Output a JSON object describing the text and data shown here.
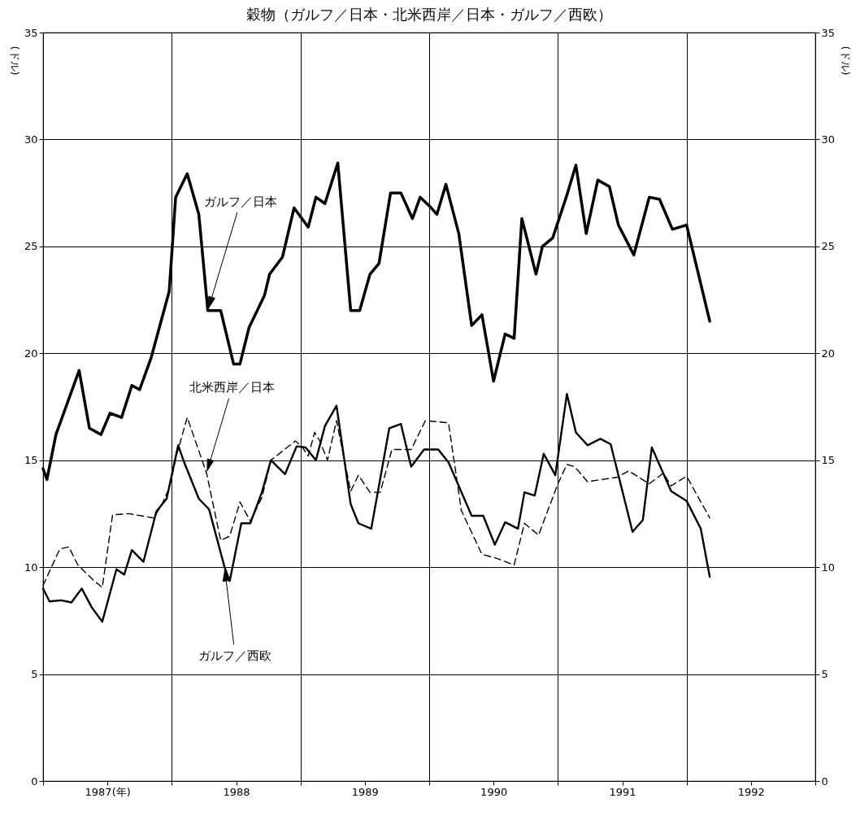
{
  "chart_data": {
    "type": "line",
    "title": "穀物（ガルフ／日本・北米西岸／日本・ガルフ／西欧）",
    "ylabel": "(ドル)",
    "y2label": "(ドル)",
    "xlim": [
      1987,
      1993
    ],
    "xticks": [
      {
        "value": 1987,
        "label": null
      },
      {
        "value": 1987.5,
        "label": "1987(年)"
      },
      {
        "value": 1988,
        "label": null
      },
      {
        "value": 1988.5,
        "label": "1988"
      },
      {
        "value": 1989,
        "label": null
      },
      {
        "value": 1989.5,
        "label": "1989"
      },
      {
        "value": 1990,
        "label": null
      },
      {
        "value": 1990.5,
        "label": "1990"
      },
      {
        "value": 1991,
        "label": null
      },
      {
        "value": 1991.5,
        "label": "1991"
      },
      {
        "value": 1992,
        "label": null
      },
      {
        "value": 1992.5,
        "label": "1992"
      },
      {
        "value": 1993,
        "label": null
      }
    ],
    "ylim": [
      0,
      35
    ],
    "yticks": [
      0,
      5,
      10,
      15,
      20,
      25,
      30,
      35
    ],
    "y2lim": [
      0,
      35
    ],
    "y2ticks": [
      0,
      5,
      10,
      15,
      20,
      25,
      30,
      35
    ],
    "grid": true,
    "series": [
      {
        "color": "#000000",
        "line_style": "solid",
        "x": [
          1987.0,
          1987.03,
          1987.1,
          1987.28,
          1987.36,
          1987.45,
          1987.52,
          1987.61,
          1987.69,
          1987.75,
          1987.84,
          1987.98,
          1988.03,
          1988.12,
          1988.21,
          1988.28,
          1988.38,
          1988.48,
          1988.53,
          1988.6,
          1988.72,
          1988.76,
          1988.86,
          1988.95,
          1989.06,
          1989.12,
          1989.19,
          1989.29,
          1989.39,
          1989.46,
          1989.54,
          1989.61,
          1989.7,
          1989.78,
          1989.87,
          1989.93,
          1990.0,
          1990.06,
          1990.13,
          1990.23,
          1990.33,
          1990.41,
          1990.5,
          1990.59,
          1990.66,
          1990.72,
          1990.83,
          1990.88,
          1990.96,
          1991.07,
          1991.14,
          1991.22,
          1991.31,
          1991.4,
          1991.47,
          1991.59,
          1991.71,
          1991.79,
          1991.89,
          1992.0,
          1992.18
        ],
        "values": [
          14.6,
          14.1,
          16.2,
          19.2,
          16.5,
          16.2,
          17.2,
          17.0,
          18.5,
          18.3,
          19.8,
          22.9,
          27.3,
          28.4,
          26.5,
          22.0,
          22.0,
          19.5,
          19.5,
          21.2,
          22.7,
          23.7,
          24.5,
          26.8,
          25.9,
          27.3,
          27.0,
          28.9,
          22.0,
          22.0,
          23.7,
          24.2,
          27.5,
          27.5,
          26.3,
          27.3,
          26.9,
          26.5,
          27.9,
          25.6,
          21.3,
          21.8,
          18.7,
          20.9,
          20.7,
          26.3,
          23.7,
          25.0,
          25.4,
          27.4,
          28.8,
          25.6,
          28.1,
          27.8,
          26.0,
          24.6,
          27.3,
          27.2,
          25.8,
          26.0,
          21.5
        ]
      },
      {
        "color": "#000000",
        "line_style": "dashed",
        "x": [
          1987.0,
          1987.13,
          1987.2,
          1987.27,
          1987.39,
          1987.46,
          1987.54,
          1987.67,
          1987.86,
          1987.92,
          1987.98,
          1988.04,
          1988.12,
          1988.27,
          1988.38,
          1988.45,
          1988.53,
          1988.61,
          1988.7,
          1988.77,
          1988.96,
          1989.01,
          1989.06,
          1989.11,
          1989.15,
          1989.21,
          1989.28,
          1989.39,
          1989.45,
          1989.54,
          1989.62,
          1989.71,
          1989.86,
          1989.97,
          1990.15,
          1990.25,
          1990.41,
          1990.53,
          1990.66,
          1990.74,
          1990.85,
          1991.0,
          1991.07,
          1991.13,
          1991.23,
          1991.46,
          1991.55,
          1991.71,
          1991.82,
          1991.88,
          1992.0,
          1992.18
        ],
        "values": [
          9.15,
          10.85,
          10.95,
          10.1,
          9.4,
          9.05,
          12.45,
          12.5,
          12.3,
          12.9,
          13.7,
          15.3,
          17.0,
          14.4,
          11.25,
          11.45,
          13.05,
          12.15,
          13.25,
          15.0,
          15.9,
          15.65,
          15.2,
          16.3,
          15.9,
          15.0,
          16.85,
          13.55,
          14.3,
          13.5,
          13.5,
          15.5,
          15.5,
          16.85,
          16.75,
          12.65,
          10.6,
          10.4,
          10.1,
          12.05,
          11.5,
          13.9,
          14.8,
          14.7,
          14.0,
          14.2,
          14.5,
          13.9,
          14.4,
          13.8,
          14.25,
          12.3
        ]
      },
      {
        "color": "#000000",
        "line_style": "solid",
        "x": [
          1987.0,
          1987.05,
          1987.14,
          1987.22,
          1987.3,
          1987.38,
          1987.46,
          1987.57,
          1987.63,
          1987.69,
          1987.78,
          1987.88,
          1987.96,
          1988.05,
          1988.09,
          1988.21,
          1988.29,
          1988.41,
          1988.45,
          1988.54,
          1988.61,
          1988.7,
          1988.77,
          1988.88,
          1988.97,
          1989.04,
          1989.12,
          1989.19,
          1989.28,
          1989.39,
          1989.45,
          1989.55,
          1989.69,
          1989.78,
          1989.86,
          1989.96,
          1990.07,
          1990.15,
          1990.33,
          1990.42,
          1990.51,
          1990.59,
          1990.69,
          1990.74,
          1990.82,
          1990.89,
          1990.98,
          1991.07,
          1991.14,
          1991.23,
          1991.33,
          1991.41,
          1991.58,
          1991.66,
          1991.73,
          1991.88,
          1992.0,
          1992.11,
          1992.18
        ],
        "values": [
          9.0,
          8.4,
          8.45,
          8.35,
          9.0,
          8.1,
          7.45,
          9.9,
          9.65,
          10.8,
          10.25,
          12.6,
          13.2,
          15.7,
          15.0,
          13.2,
          12.7,
          10.0,
          9.35,
          12.05,
          12.05,
          13.5,
          15.0,
          14.35,
          15.65,
          15.6,
          15.0,
          16.6,
          17.55,
          12.95,
          12.05,
          11.8,
          16.5,
          16.7,
          14.7,
          15.5,
          15.5,
          14.9,
          12.4,
          12.4,
          11.05,
          12.1,
          11.8,
          13.5,
          13.35,
          15.3,
          14.3,
          18.1,
          16.3,
          15.7,
          16.0,
          15.75,
          11.65,
          12.2,
          15.6,
          13.55,
          13.1,
          11.8,
          9.55
        ]
      }
    ],
    "annotations": [
      {
        "text": "ガルフ／日本",
        "x": 1988.28,
        "y": 22.0
      },
      {
        "text": "北米西岸／日本",
        "x": 1988.27,
        "y": 14.4
      },
      {
        "text": "ガルフ／西欧",
        "x": 1988.41,
        "y": 10.0
      }
    ]
  }
}
